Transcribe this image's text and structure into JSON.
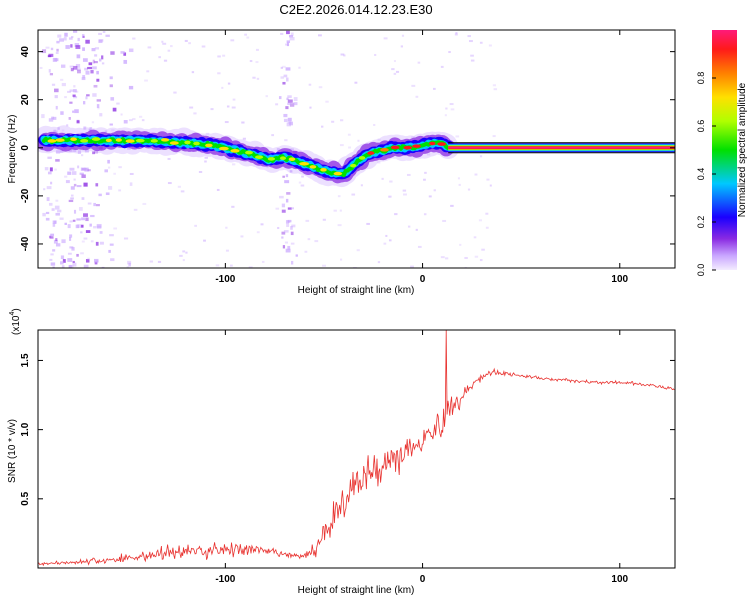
{
  "title": "C2E2.2026.014.12.23.E30",
  "colors": {
    "snr_line": "#e8322f",
    "colormap": [
      "#f0e6ff",
      "#c9a6ff",
      "#8a2be2",
      "#1a00ff",
      "#00c8ff",
      "#00e000",
      "#b0ff00",
      "#ffe000",
      "#ff8000",
      "#ff1a1a",
      "#ff1a7a"
    ]
  },
  "chart_data": [
    {
      "type": "heatmap",
      "xlabel": "Height of straight line (km)",
      "ylabel": "Frequency (Hz)",
      "xlim": [
        -195,
        128
      ],
      "ylim": [
        -50,
        49
      ],
      "xticks": [
        -100,
        0,
        100
      ],
      "xtick_labels": [
        "-100",
        "0",
        "100"
      ],
      "yticks": [
        -40,
        -20,
        0,
        20,
        40
      ],
      "ytick_labels": [
        "-40",
        "-20",
        "0",
        "20",
        "40"
      ],
      "ridge": {
        "x": [
          -192,
          -180,
          -160,
          -140,
          -120,
          -105,
          -95,
          -85,
          -78,
          -70,
          -62,
          -55,
          -48,
          -40,
          -35,
          -30,
          -25,
          -20,
          -15,
          -10,
          -5,
          0,
          5,
          10,
          13
        ],
        "y": [
          3,
          3,
          3,
          3,
          2,
          1,
          -1,
          -3,
          -5,
          -4,
          -6,
          -8,
          -10,
          -11,
          -7,
          -4,
          -2,
          -1,
          0,
          0,
          0,
          1,
          2,
          2,
          0
        ]
      },
      "constant_band": {
        "x_start": 13,
        "x_end": 128,
        "y": 0
      },
      "colorbar": {
        "label": "Normalized spectral amplitude",
        "ticks": [
          0.0,
          0.2,
          0.4,
          0.6,
          0.8
        ],
        "tick_labels": [
          "0.0",
          "0.2",
          "0.4",
          "0.6",
          "0.8"
        ],
        "range": [
          0,
          1
        ]
      }
    },
    {
      "type": "line",
      "xlabel": "Height of straight line (km)",
      "ylabel": "SNR (10 * v/v)",
      "exponent_label": "(x10",
      "exponent_power": "4",
      "exponent_close": ")",
      "xlim": [
        -195,
        128
      ],
      "ylim": [
        0,
        1.72
      ],
      "xticks": [
        -100,
        0,
        100
      ],
      "xtick_labels": [
        "-100",
        "0",
        "100"
      ],
      "yticks": [
        0.5,
        1.0,
        1.5
      ],
      "ytick_labels": [
        "0.5",
        "1.0",
        "1.5"
      ],
      "series": [
        {
          "name": "SNR",
          "x": [
            -195,
            -180,
            -165,
            -150,
            -140,
            -130,
            -120,
            -110,
            -100,
            -90,
            -80,
            -70,
            -62,
            -55,
            -50,
            -45,
            -40,
            -35,
            -30,
            -25,
            -20,
            -15,
            -10,
            -5,
            0,
            5,
            10,
            15,
            20,
            25,
            30,
            35,
            40,
            50,
            60,
            70,
            80,
            90,
            100,
            110,
            120,
            128
          ],
          "values": [
            0.03,
            0.04,
            0.05,
            0.07,
            0.09,
            0.11,
            0.12,
            0.12,
            0.14,
            0.13,
            0.12,
            0.1,
            0.08,
            0.12,
            0.25,
            0.38,
            0.48,
            0.58,
            0.64,
            0.7,
            0.76,
            0.78,
            0.83,
            0.9,
            0.95,
            0.98,
            1.05,
            1.15,
            1.25,
            1.32,
            1.38,
            1.42,
            1.41,
            1.39,
            1.37,
            1.36,
            1.35,
            1.34,
            1.34,
            1.33,
            1.31,
            1.29
          ],
          "noise": [
            0.02,
            0.02,
            0.04,
            0.06,
            0.08,
            0.09,
            0.1,
            0.1,
            0.1,
            0.09,
            0.06,
            0.04,
            0.03,
            0.08,
            0.15,
            0.2,
            0.22,
            0.24,
            0.24,
            0.24,
            0.22,
            0.22,
            0.22,
            0.2,
            0.2,
            0.2,
            0.22,
            0.2,
            0.12,
            0.06,
            0.04,
            0.03,
            0.03,
            0.02,
            0.02,
            0.02,
            0.02,
            0.02,
            0.02,
            0.02,
            0.02,
            0.02
          ],
          "peak": {
            "x": 12,
            "value": 1.72
          }
        }
      ]
    }
  ]
}
